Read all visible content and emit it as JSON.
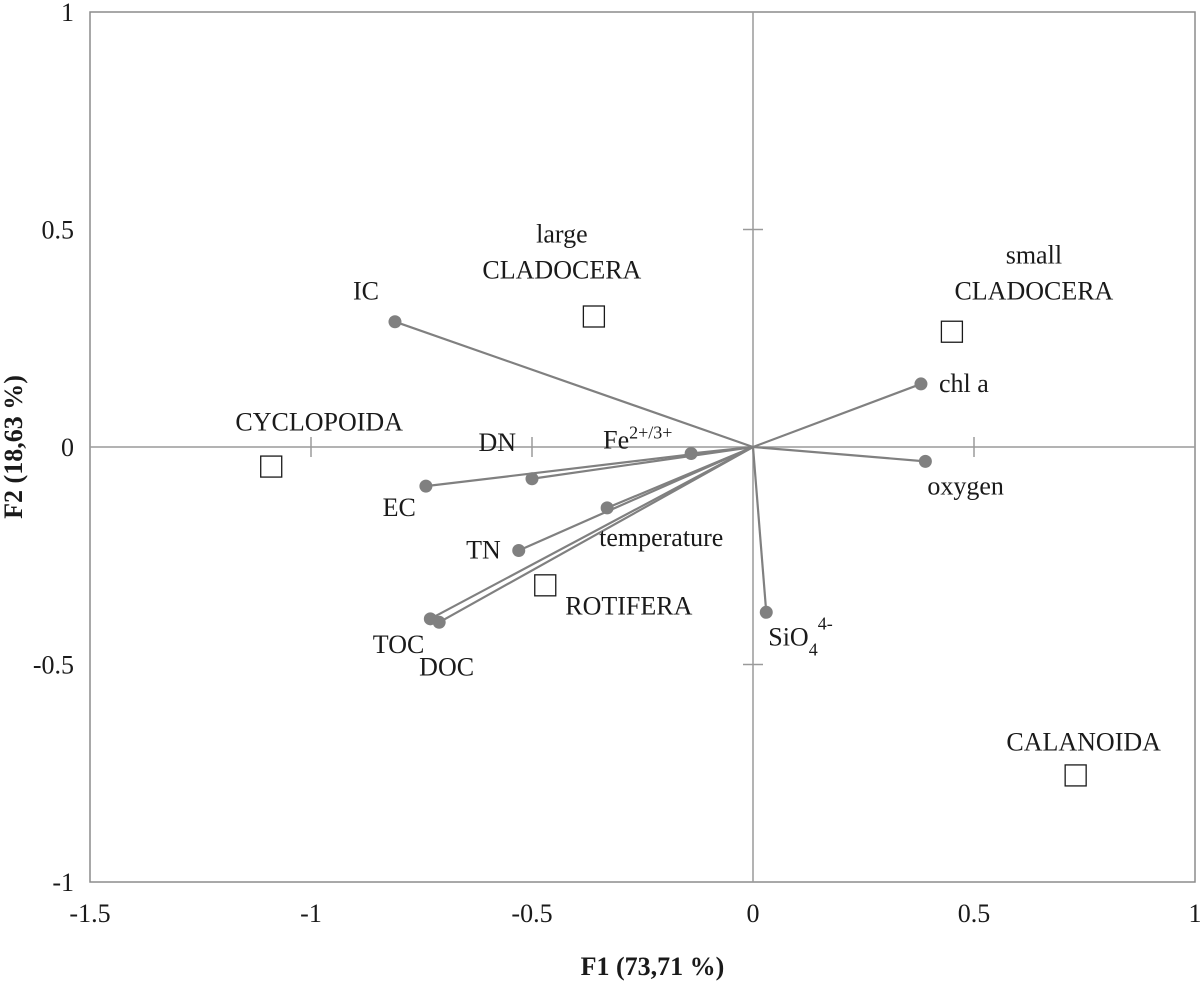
{
  "chart_data": {
    "type": "scatter",
    "xlabel": "F1 (73,71 %)",
    "ylabel": "F2 (18,63 %)",
    "xlim": [
      -1.5,
      1
    ],
    "ylim": [
      -1,
      1
    ],
    "x_ticks": [
      -1.5,
      -1,
      -0.5,
      0,
      0.5,
      1
    ],
    "y_ticks": [
      -1,
      -0.5,
      0,
      0.5,
      1
    ],
    "x_tick_labels": [
      "-1.5",
      "-1",
      "-0.5",
      "0",
      "0.5",
      "1"
    ],
    "y_tick_labels": [
      "-1",
      "-0.5",
      "0",
      "0.5",
      "1"
    ],
    "grid": false,
    "origin_axes": true,
    "variables": [
      {
        "label": "IC",
        "x": -0.81,
        "y": 0.288
      },
      {
        "label": "DN",
        "x": -0.5,
        "y": -0.073
      },
      {
        "label": "EC",
        "x": -0.74,
        "y": -0.09
      },
      {
        "label": "TN",
        "x": -0.53,
        "y": -0.238
      },
      {
        "label": "TOC",
        "x": -0.73,
        "y": -0.395
      },
      {
        "label": "DOC",
        "x": -0.71,
        "y": -0.403
      },
      {
        "label": "temperature",
        "x": -0.33,
        "y": -0.14
      },
      {
        "label": "Fe",
        "superscript": "2+/3+",
        "x": -0.14,
        "y": -0.015
      },
      {
        "label": "chl a",
        "x": 0.38,
        "y": 0.145
      },
      {
        "label": "oxygen",
        "x": 0.39,
        "y": -0.033
      },
      {
        "label": "SiO",
        "subscript": "4",
        "superscript": "4-",
        "x": 0.03,
        "y": -0.38
      }
    ],
    "observations": [
      {
        "label": "CYCLOPOIDA",
        "x": -1.09,
        "y": -0.045
      },
      {
        "label": "large CLADOCERA",
        "lines": [
          "large",
          "CLADOCERA"
        ],
        "x": -0.36,
        "y": 0.3
      },
      {
        "label": "small CLADOCERA",
        "lines": [
          "small",
          "CLADOCERA"
        ],
        "x": 0.45,
        "y": 0.265
      },
      {
        "label": "ROTIFERA",
        "x": -0.47,
        "y": -0.318
      },
      {
        "label": "CALANOIDA",
        "x": 0.73,
        "y": -0.755
      }
    ]
  }
}
